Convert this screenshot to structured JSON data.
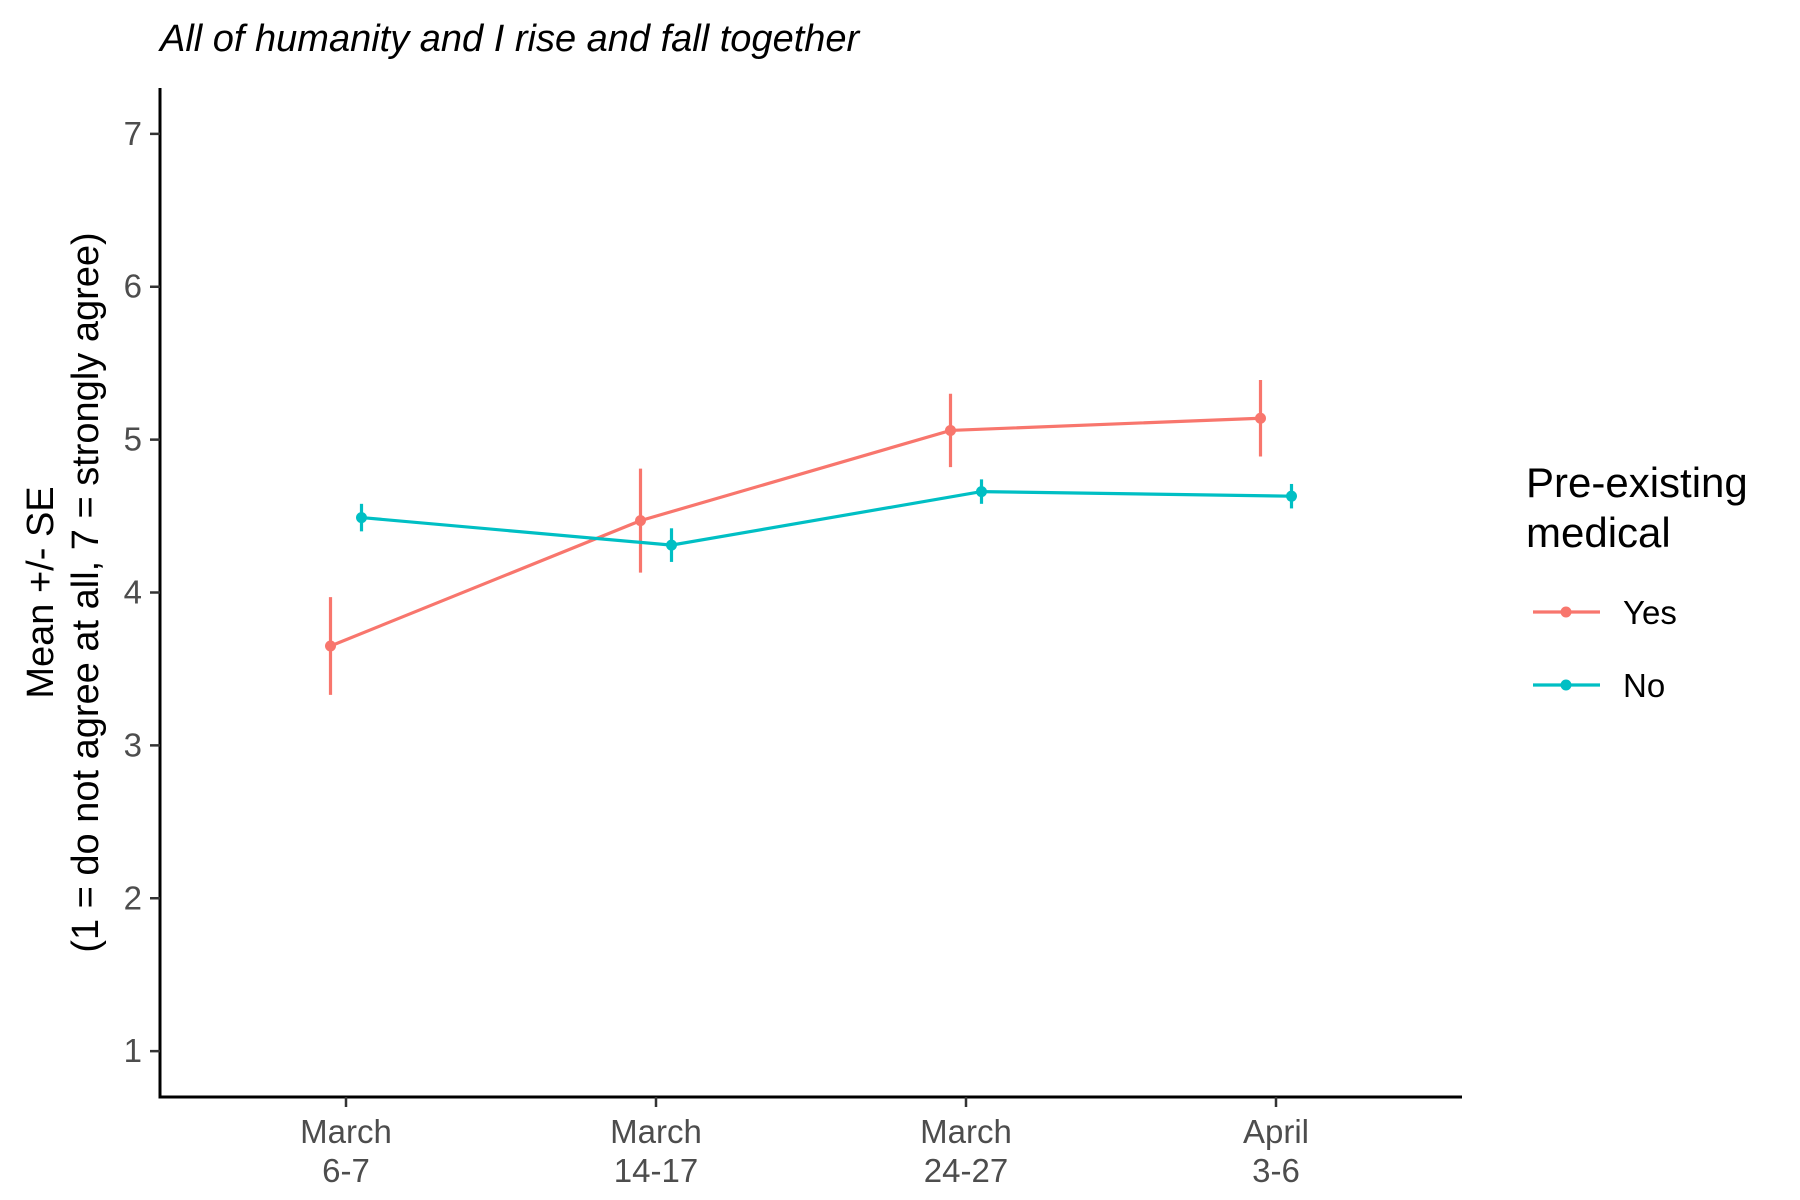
{
  "chart_data": {
    "type": "line",
    "title": "All of humanity and I rise and fall together",
    "ylabel_lines": [
      "Mean +/- SE",
      "(1 = do not agree at all, 7 = strongly agree)"
    ],
    "xlabel": "",
    "categories": [
      [
        "March",
        "6-7"
      ],
      [
        "March",
        "14-17"
      ],
      [
        "March",
        "24-27"
      ],
      [
        "April",
        "3-6"
      ]
    ],
    "ylim": [
      0.7,
      7.3
    ],
    "yticks": [
      1,
      2,
      3,
      4,
      5,
      6,
      7
    ],
    "grid": false,
    "legend": {
      "title_lines": [
        "Pre-existing",
        "medical"
      ],
      "placement": "right"
    },
    "dodge": 0.05,
    "series": [
      {
        "name": "Yes",
        "color": "#F8766D",
        "values": [
          3.65,
          4.47,
          5.06,
          5.14
        ],
        "se": [
          0.32,
          0.34,
          0.24,
          0.25
        ]
      },
      {
        "name": "No",
        "color": "#00BFC4",
        "values": [
          4.49,
          4.31,
          4.66,
          4.63
        ],
        "se": [
          0.09,
          0.11,
          0.08,
          0.08
        ]
      }
    ]
  }
}
